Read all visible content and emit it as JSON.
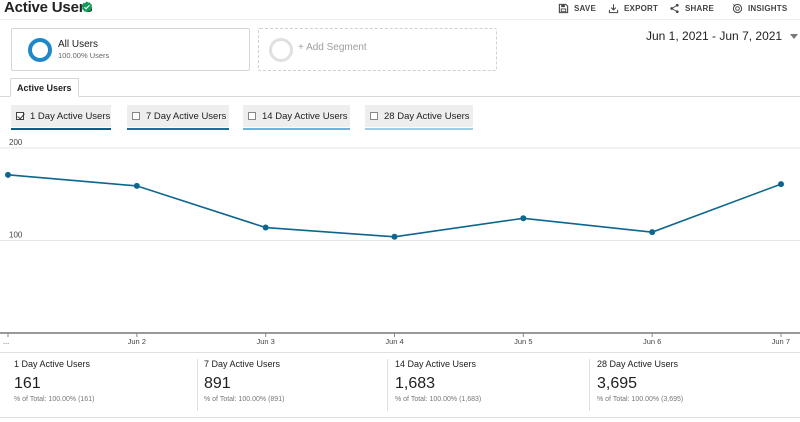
{
  "header": {
    "title": "Active Users",
    "actions": [
      {
        "id": "save",
        "label": "SAVE",
        "icon": "save-icon"
      },
      {
        "id": "export",
        "label": "EXPORT",
        "icon": "export-icon"
      },
      {
        "id": "share",
        "label": "SHARE",
        "icon": "share-icon"
      },
      {
        "id": "insights",
        "label": "INSIGHTS",
        "icon": "insights-icon"
      }
    ]
  },
  "segments": {
    "all_users": {
      "name": "All Users",
      "percent": "100.00% Users"
    },
    "add_label": "+ Add Segment"
  },
  "date_range": "Jun 1, 2021 - Jun 7, 2021",
  "tab": {
    "label": "Active Users"
  },
  "metrics": [
    {
      "label": "1 Day Active Users",
      "checked": true,
      "color": "#0d5d8a"
    },
    {
      "label": "7 Day Active Users",
      "checked": false,
      "color": "#1b6fa0"
    },
    {
      "label": "14 Day Active Users",
      "checked": false,
      "color": "#6bb4db"
    },
    {
      "label": "28 Day Active Users",
      "checked": false,
      "color": "#9fcfe8"
    }
  ],
  "chart_data": {
    "type": "line",
    "x": [
      "...",
      "Jun 2",
      "Jun 3",
      "Jun 4",
      "Jun 5",
      "Jun 6",
      "Jun 7"
    ],
    "series": [
      {
        "name": "1 Day Active Users",
        "values": [
          171,
          159,
          114,
          104,
          124,
          109,
          161
        ]
      }
    ],
    "ylim": [
      0,
      200
    ],
    "yticks": [
      "100",
      "200"
    ],
    "color": "#0d6690"
  },
  "summary": [
    {
      "label": "1 Day Active Users",
      "value": "161",
      "total": "% of Total: 100.00% (161)"
    },
    {
      "label": "7 Day Active Users",
      "value": "891",
      "total": "% of Total: 100.00% (891)"
    },
    {
      "label": "14 Day Active Users",
      "value": "1,683",
      "total": "% of Total: 100.00% (1,683)"
    },
    {
      "label": "28 Day Active Users",
      "value": "3,695",
      "total": "% of Total: 100.00% (3,695)"
    }
  ]
}
